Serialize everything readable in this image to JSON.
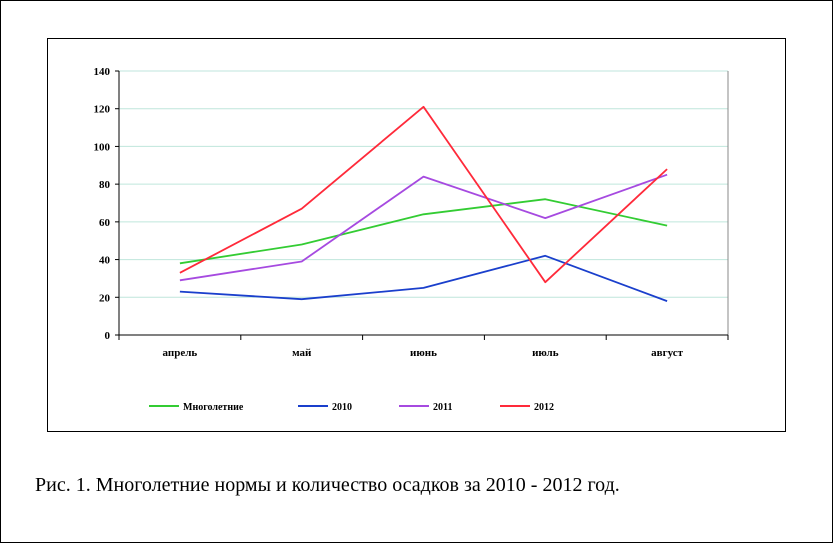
{
  "chart_data": {
    "type": "line",
    "categories": [
      "апрель",
      "май",
      "июнь",
      "июль",
      "август"
    ],
    "series": [
      {
        "name": "Многолетние",
        "color": "#33cc33",
        "values": [
          38,
          48,
          64,
          72,
          58
        ]
      },
      {
        "name": "2010",
        "color": "#1a3fcc",
        "values": [
          23,
          19,
          25,
          42,
          18
        ]
      },
      {
        "name": "2011",
        "color": "#a64ae0",
        "values": [
          29,
          39,
          84,
          62,
          85
        ]
      },
      {
        "name": "2012",
        "color": "#ff2a3a",
        "values": [
          33,
          67,
          121,
          28,
          88
        ]
      }
    ],
    "yticks": [
      "0",
      "20",
      "40",
      "60",
      "80",
      "100",
      "120",
      "140"
    ],
    "ylim": [
      0,
      140
    ],
    "grid": true,
    "grid_color": "#bfe6dc",
    "legend_position": "bottom"
  },
  "caption": "Рис. 1. Многолетние нормы и количество осадков за 2010 - 2012 год."
}
